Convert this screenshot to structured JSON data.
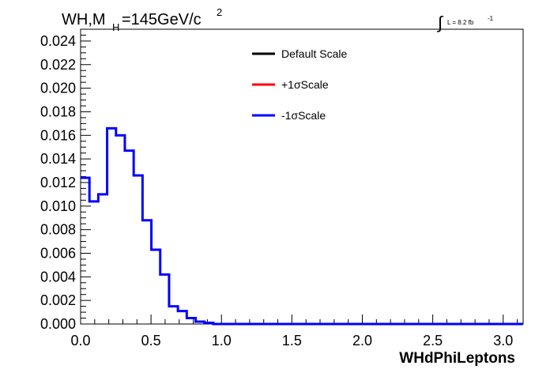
{
  "header": {
    "title_main": "WH,M",
    "title_sub": "H",
    "title_rest": "=145GeV/c",
    "title_sup": "2",
    "lumi_integral": "∫",
    "lumi_text": "L = 8.2 fb",
    "lumi_sup": "-1"
  },
  "chart_data": {
    "type": "line",
    "xlabel": "WHdPhiLeptons",
    "ylabel": "",
    "xlim": [
      0,
      3.1416
    ],
    "ylim": [
      0,
      0.025
    ],
    "x_ticks": [
      "0.0",
      "0.5",
      "1.0",
      "1.5",
      "2.0",
      "2.5",
      "3.0"
    ],
    "y_ticks": [
      "0.000",
      "0.002",
      "0.004",
      "0.006",
      "0.008",
      "0.010",
      "0.012",
      "0.014",
      "0.016",
      "0.018",
      "0.020",
      "0.022",
      "0.024"
    ],
    "bin_width": 0.0628,
    "legend": [
      {
        "label": "Default Scale",
        "color": "#000000"
      },
      {
        "label": "+1σScale",
        "color": "#ff0000"
      },
      {
        "label": "-1σScale",
        "color": "#0000ff"
      }
    ],
    "series": [
      {
        "name": "-1σScale",
        "color": "#0000ff",
        "values": [
          0.0124,
          0.0104,
          0.011,
          0.0166,
          0.016,
          0.0147,
          0.0126,
          0.0088,
          0.0063,
          0.0042,
          0.0015,
          0.0011,
          0.0005,
          0.0002,
          0.0001,
          0,
          0,
          0,
          0,
          0,
          0,
          0,
          0,
          0,
          0,
          0,
          0,
          0,
          0,
          0,
          0,
          0,
          0,
          0,
          0,
          0,
          0,
          0,
          0,
          0,
          0,
          0,
          0,
          0,
          0,
          0,
          0,
          0,
          0,
          0
        ]
      }
    ]
  }
}
